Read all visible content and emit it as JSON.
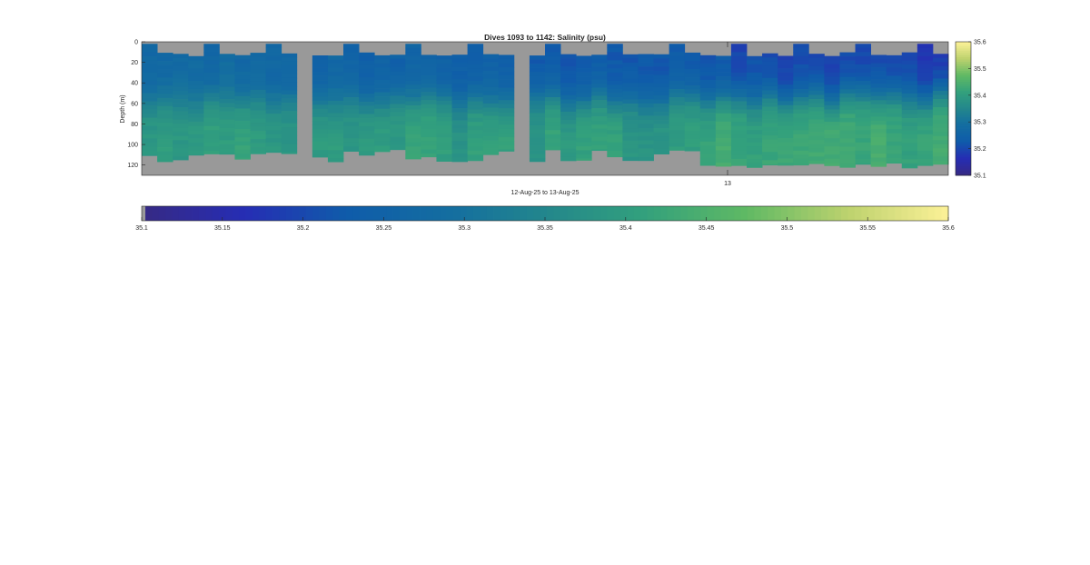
{
  "colors": {
    "nodata": "#999999",
    "axis": "#262626",
    "background": "#ffffff"
  },
  "colormap": "parula-like (blue-green-yellow)",
  "chart_data": {
    "type": "heatmap",
    "title": "Dives 1093 to 1142: Salinity (psu)",
    "xlabel": "12-Aug-25 to 13-Aug-25",
    "ylabel": "Depth (m)",
    "x_ticks": [
      "13"
    ],
    "y_ticks": [
      "0",
      "20",
      "40",
      "60",
      "80",
      "100",
      "120"
    ],
    "ylim": [
      0,
      130
    ],
    "y_reversed": true,
    "clim": [
      35.1,
      35.6
    ],
    "colorbar_right_ticks": [
      "35.6",
      "35.5",
      "35.4",
      "35.3",
      "35.2",
      "35.1"
    ],
    "colorbar_bottom_ticks": [
      "35.1",
      "35.15",
      "35.2",
      "35.25",
      "35.3",
      "35.35",
      "35.4",
      "35.45",
      "35.5",
      "35.55",
      "35.6"
    ],
    "dive_start": 1093,
    "dive_end": 1142,
    "gaps_after_dive_index": [
      10,
      23
    ],
    "depth_bin_m": 4,
    "max_depth_m": 130
  }
}
